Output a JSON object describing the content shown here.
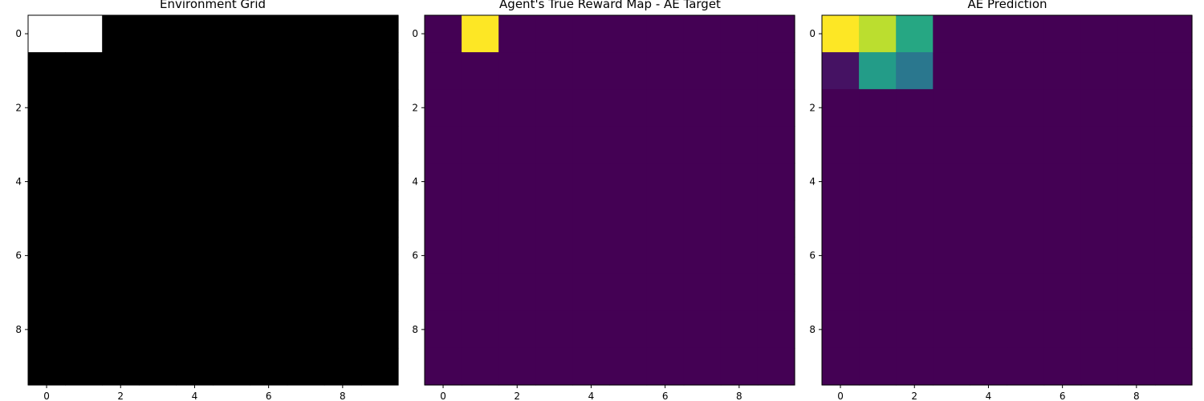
{
  "chart_data": [
    {
      "type": "heatmap",
      "title": "Environment Grid",
      "colormap": "gray",
      "vmin": 0,
      "vmax": 1,
      "rows": 10,
      "cols": 10,
      "x_ticks": [
        0,
        2,
        4,
        6,
        8
      ],
      "y_ticks": [
        0,
        2,
        4,
        6,
        8
      ],
      "values": [
        [
          1,
          1,
          0,
          0,
          0,
          0,
          0,
          0,
          0,
          0
        ],
        [
          0,
          0,
          0,
          0,
          0,
          0,
          0,
          0,
          0,
          0
        ],
        [
          0,
          0,
          0,
          0,
          0,
          0,
          0,
          0,
          0,
          0
        ],
        [
          0,
          0,
          0,
          0,
          0,
          0,
          0,
          0,
          0,
          0
        ],
        [
          0,
          0,
          0,
          0,
          0,
          0,
          0,
          0,
          0,
          0
        ],
        [
          0,
          0,
          0,
          0,
          0,
          0,
          0,
          0,
          0,
          0
        ],
        [
          0,
          0,
          0,
          0,
          0,
          0,
          0,
          0,
          0,
          0
        ],
        [
          0,
          0,
          0,
          0,
          0,
          0,
          0,
          0,
          0,
          0
        ],
        [
          0,
          0,
          0,
          0,
          0,
          0,
          0,
          0,
          0,
          0
        ],
        [
          0,
          0,
          0,
          0,
          0,
          0,
          0,
          0,
          0,
          0
        ]
      ]
    },
    {
      "type": "heatmap",
      "title": "Agent's True Reward Map - AE Target",
      "colormap": "viridis",
      "vmin": 0,
      "vmax": 1,
      "rows": 10,
      "cols": 10,
      "x_ticks": [
        0,
        2,
        4,
        6,
        8
      ],
      "y_ticks": [
        0,
        2,
        4,
        6,
        8
      ],
      "values": [
        [
          0,
          1,
          0,
          0,
          0,
          0,
          0,
          0,
          0,
          0
        ],
        [
          0,
          0,
          0,
          0,
          0,
          0,
          0,
          0,
          0,
          0
        ],
        [
          0,
          0,
          0,
          0,
          0,
          0,
          0,
          0,
          0,
          0
        ],
        [
          0,
          0,
          0,
          0,
          0,
          0,
          0,
          0,
          0,
          0
        ],
        [
          0,
          0,
          0,
          0,
          0,
          0,
          0,
          0,
          0,
          0
        ],
        [
          0,
          0,
          0,
          0,
          0,
          0,
          0,
          0,
          0,
          0
        ],
        [
          0,
          0,
          0,
          0,
          0,
          0,
          0,
          0,
          0,
          0
        ],
        [
          0,
          0,
          0,
          0,
          0,
          0,
          0,
          0,
          0,
          0
        ],
        [
          0,
          0,
          0,
          0,
          0,
          0,
          0,
          0,
          0,
          0
        ],
        [
          0,
          0,
          0,
          0,
          0,
          0,
          0,
          0,
          0,
          0
        ]
      ]
    },
    {
      "type": "heatmap",
      "title": "AE Prediction",
      "colormap": "viridis",
      "vmin": 0,
      "vmax": 1,
      "rows": 10,
      "cols": 10,
      "x_ticks": [
        0,
        2,
        4,
        6,
        8
      ],
      "y_ticks": [
        0,
        2,
        4,
        6,
        8
      ],
      "values": [
        [
          1.0,
          0.9,
          0.6,
          0,
          0,
          0,
          0,
          0,
          0,
          0
        ],
        [
          0.05,
          0.55,
          0.4,
          0,
          0,
          0,
          0,
          0,
          0,
          0
        ],
        [
          0,
          0,
          0,
          0,
          0,
          0,
          0,
          0,
          0,
          0
        ],
        [
          0,
          0,
          0,
          0,
          0,
          0,
          0,
          0,
          0,
          0
        ],
        [
          0,
          0,
          0,
          0,
          0,
          0,
          0,
          0,
          0,
          0
        ],
        [
          0,
          0,
          0,
          0,
          0,
          0,
          0,
          0,
          0,
          0
        ],
        [
          0,
          0,
          0,
          0,
          0,
          0,
          0,
          0,
          0,
          0
        ],
        [
          0,
          0,
          0,
          0,
          0,
          0,
          0,
          0,
          0,
          0
        ],
        [
          0,
          0,
          0,
          0,
          0,
          0,
          0,
          0,
          0,
          0
        ],
        [
          0,
          0,
          0,
          0,
          0,
          0,
          0,
          0,
          0,
          0
        ]
      ]
    }
  ]
}
